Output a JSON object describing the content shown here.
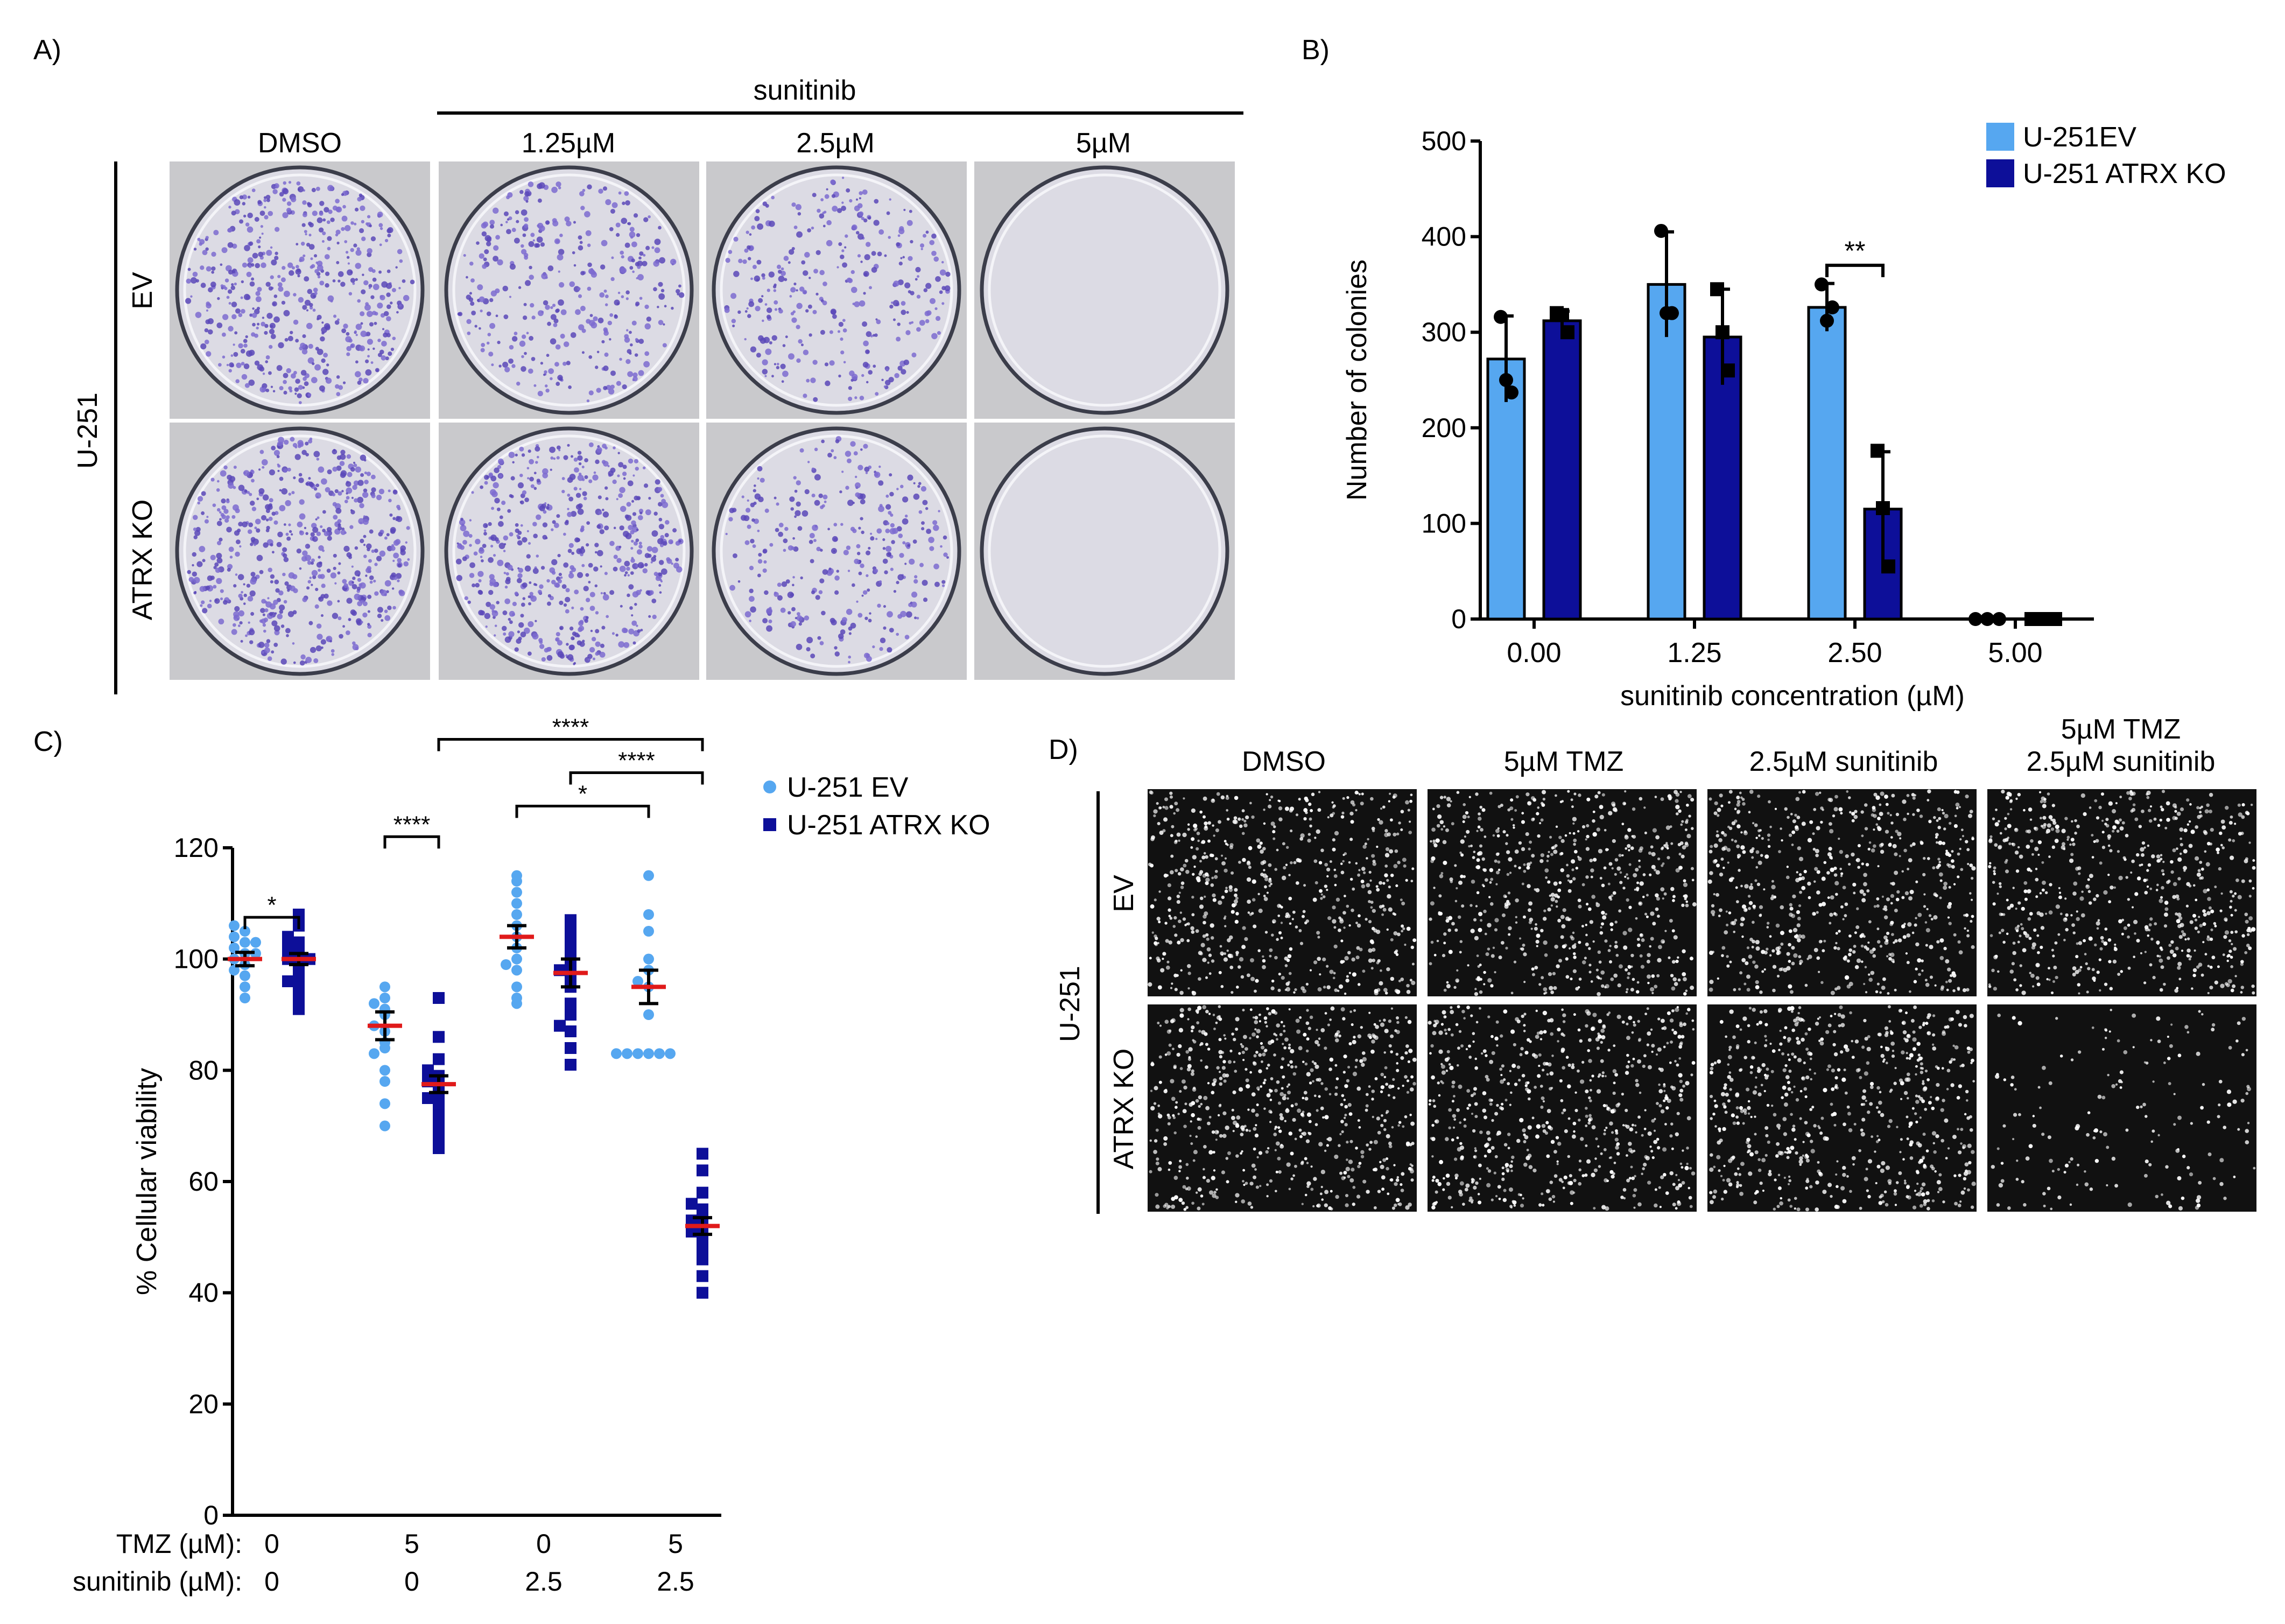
{
  "panels": {
    "A": {
      "label": "A)",
      "group_label": "sunitinib",
      "columns": [
        "DMSO",
        "1.25µM",
        "2.5µM",
        "5µM"
      ],
      "rows": [
        "EV",
        "ATRX KO"
      ],
      "cell_line": "U-251",
      "colony_density": [
        [
          0.8,
          0.55,
          0.5,
          0.0
        ],
        [
          0.9,
          0.85,
          0.5,
          0.0
        ]
      ]
    },
    "B": {
      "label": "B)"
    },
    "C": {
      "label": "C)",
      "row_labels": [
        "TMZ (µM):",
        "sunitinib (µM):"
      ],
      "conditions": [
        {
          "tmz": "0",
          "sunitinib": "0"
        },
        {
          "tmz": "5",
          "sunitinib": "0"
        },
        {
          "tmz": "0",
          "sunitinib": "2.5"
        },
        {
          "tmz": "5",
          "sunitinib": "2.5"
        }
      ]
    },
    "D": {
      "label": "D)",
      "columns": [
        "DMSO",
        "5µM TMZ",
        "2.5µM sunitinib",
        "5µM TMZ\n2.5µM sunitinib"
      ],
      "rows": [
        "EV",
        "ATRX KO"
      ],
      "cell_line": "U-251",
      "nuclei_density": [
        [
          0.9,
          0.9,
          0.9,
          0.9
        ],
        [
          0.95,
          0.9,
          0.9,
          0.25
        ]
      ]
    }
  },
  "chart_data": [
    {
      "panel": "B",
      "type": "bar",
      "categories": [
        "0.00",
        "1.25",
        "2.50",
        "5.00"
      ],
      "xlabel": "sunitinib concentration (µM)",
      "ylabel": "Number of colonies",
      "ylim": [
        0,
        500
      ],
      "yticks": [
        0,
        100,
        200,
        300,
        400,
        500
      ],
      "legend_position": "top-right",
      "series": [
        {
          "name": "U-251EV",
          "color": "#56a7f0",
          "values": [
            272,
            350,
            326,
            0
          ],
          "errors": [
            45,
            55,
            25,
            0
          ],
          "points": [
            [
              316,
              250,
              237
            ],
            [
              406,
              320,
              320
            ],
            [
              350,
              312,
              326
            ],
            [
              0,
              0,
              0
            ]
          ]
        },
        {
          "name": "U-251 ATRX KO",
          "color": "#0d0f99",
          "values": [
            312,
            295,
            115,
            0
          ],
          "errors": [
            10,
            50,
            60,
            0
          ],
          "points": [
            [
              320,
              318,
              300
            ],
            [
              345,
              300,
              260
            ],
            [
              176,
              116,
              55
            ],
            [
              0,
              0,
              0
            ]
          ]
        }
      ],
      "annotations": [
        {
          "text": "**",
          "category": "2.50"
        }
      ]
    },
    {
      "panel": "C",
      "type": "scatter",
      "ylabel": "% Cellular viability",
      "ylim": [
        0,
        120
      ],
      "yticks": [
        0,
        20,
        40,
        60,
        80,
        100,
        120
      ],
      "legend_position": "top-right",
      "series": [
        {
          "name": "U-251 EV",
          "color": "#56a7f0",
          "marker": "circle",
          "means": [
            100,
            88,
            104,
            95
          ],
          "sem": [
            1.2,
            2.5,
            2.0,
            3.0
          ],
          "points": [
            [
              97,
              98,
              99,
              100,
              101,
              102,
              103,
              104,
              105,
              106,
              93,
              95,
              101,
              103
            ],
            [
              70,
              74,
              78,
              80,
              85,
              87,
              88,
              90,
              91,
              92,
              93,
              95,
              84,
              83
            ],
            [
              92,
              95,
              98,
              100,
              102,
              104,
              106,
              108,
              110,
              112,
              114,
              115,
              93,
              99
            ],
            [
              83,
              83,
              83,
              83,
              83,
              83,
              90,
              95,
              98,
              100,
              105,
              108,
              115,
              96
            ]
          ]
        },
        {
          "name": "U-251 ATRX KO",
          "color": "#0d0f99",
          "marker": "square",
          "means": [
            100,
            77.5,
            97.5,
            52
          ],
          "sem": [
            1.0,
            1.5,
            2.5,
            1.5
          ],
          "points": [
            [
              91,
              93,
              95,
              97,
              99,
              100,
              101,
              102,
              103,
              104,
              106,
              108,
              96,
              100
            ],
            [
              66,
              68,
              70,
              72,
              74,
              76,
              77,
              78,
              79,
              80,
              82,
              86,
              93,
              75
            ],
            [
              81,
              84,
              87,
              90,
              92,
              95,
              97,
              99,
              101,
              103,
              105,
              107,
              88,
              98
            ],
            [
              40,
              43,
              46,
              48,
              50,
              52,
              54,
              55,
              56,
              58,
              62,
              65,
              51,
              53
            ]
          ]
        }
      ],
      "significance": [
        {
          "text": "*",
          "from": 0,
          "to": 1
        },
        {
          "text": "****",
          "from": 2,
          "to": 3
        },
        {
          "text": "*",
          "from": 4,
          "to": 6
        },
        {
          "text": "****",
          "from": 5,
          "to": 7
        },
        {
          "text": "****",
          "from": 3,
          "to": 7
        }
      ]
    }
  ]
}
